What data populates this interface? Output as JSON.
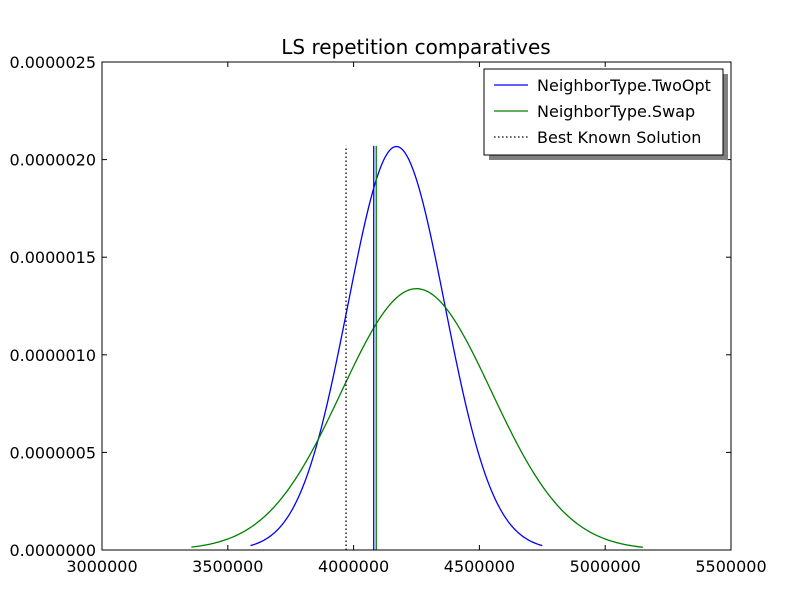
{
  "chart_data": {
    "type": "line",
    "title": "LS repetition comparatives",
    "xlabel": "",
    "ylabel": "",
    "xlim": [
      3000000,
      5500000
    ],
    "ylim": [
      0,
      2.5e-06
    ],
    "x_ticks": [
      3000000,
      3500000,
      4000000,
      4500000,
      5000000,
      5500000
    ],
    "x_tick_labels": [
      "3000000",
      "3500000",
      "4000000",
      "4500000",
      "5000000",
      "5500000"
    ],
    "y_ticks": [
      0,
      5e-07,
      1e-06,
      1.5e-06,
      2e-06,
      2.5e-06
    ],
    "y_tick_labels": [
      "0.0000000",
      "0.0000005",
      "0.0000010",
      "0.0000015",
      "0.0000020",
      "0.0000025"
    ],
    "grid": false,
    "legend": "top-right",
    "series": [
      {
        "name": "NeighborType.TwoOpt",
        "kind": "normal-pdf",
        "mean": 4170000,
        "sd": 193000,
        "x_range": [
          3590000,
          4750000
        ],
        "color": "#0000ff",
        "marker_x": 4080000,
        "marker_top": 2.07e-06
      },
      {
        "name": "NeighborType.Swap",
        "kind": "normal-pdf",
        "mean": 4250000,
        "sd": 298000,
        "x_range": [
          3355000,
          5150000
        ],
        "color": "#008000",
        "marker_x": 4090000,
        "marker_top": 2.07e-06
      },
      {
        "name": "Best Known Solution",
        "kind": "vline",
        "x": 3970000,
        "top": 2.07e-06,
        "color": "#000000",
        "style": "dotted"
      }
    ]
  }
}
